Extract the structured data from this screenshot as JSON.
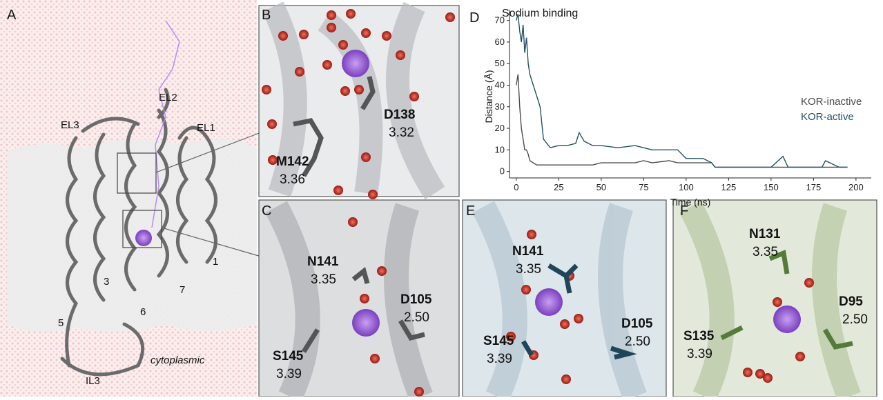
{
  "panel_a": {
    "label": "A",
    "labels": [
      "EL2",
      "EL3",
      "EL1",
      "1",
      "3",
      "7",
      "6",
      "5",
      "IL3",
      "cytoplasmic"
    ]
  },
  "panel_b": {
    "label": "B",
    "residues": [
      {
        "name": "D138",
        "number": "3.32"
      },
      {
        "name": "M142",
        "number": "3.36"
      }
    ]
  },
  "panel_c": {
    "label": "C",
    "residues": [
      {
        "name": "N141",
        "number": "3.35"
      },
      {
        "name": "D105",
        "number": "2.50"
      },
      {
        "name": "S145",
        "number": "3.39"
      }
    ]
  },
  "panel_e": {
    "label": "E",
    "residues": [
      {
        "name": "N141",
        "number": "3.35"
      },
      {
        "name": "D105",
        "number": "2.50"
      },
      {
        "name": "S145",
        "number": "3.39"
      }
    ]
  },
  "panel_f": {
    "label": "F",
    "residues": [
      {
        "name": "N131",
        "number": "3.35"
      },
      {
        "name": "D95",
        "number": "2.50"
      },
      {
        "name": "S135",
        "number": "3.39"
      }
    ]
  },
  "chart_data": {
    "type": "line",
    "label": "D",
    "title": "Sodium binding",
    "x_label": "Time (ns)",
    "y_label": "Distance (Å)",
    "x": [
      0,
      1,
      2,
      3,
      4,
      5,
      6,
      7,
      8,
      10,
      12,
      14,
      16,
      18,
      20,
      25,
      30,
      35,
      37,
      40,
      45,
      50,
      60,
      70,
      75,
      80,
      90,
      95,
      100,
      110,
      115,
      117,
      125,
      150,
      157,
      160,
      170,
      180,
      182,
      190,
      195
    ],
    "series": [
      {
        "name": "KOR-inactive",
        "color": "#4a4a4a",
        "values": [
          40,
          45,
          30,
          20,
          15,
          10,
          10,
          8,
          5,
          4,
          3,
          3,
          3,
          3,
          3,
          3,
          3,
          3,
          3,
          3,
          3,
          4,
          4,
          4,
          5,
          4,
          5,
          4,
          4,
          4,
          4,
          2,
          2,
          2,
          2,
          2,
          2,
          2,
          2,
          2,
          2
        ]
      },
      {
        "name": "KOR-active",
        "color": "#1f5064",
        "values": [
          70,
          73,
          65,
          60,
          68,
          55,
          62,
          50,
          45,
          40,
          35,
          30,
          15,
          13,
          11,
          12,
          12,
          13,
          18,
          14,
          12,
          12,
          11,
          12,
          11,
          10,
          10,
          10,
          6,
          6,
          4,
          2,
          2,
          2,
          7,
          2,
          2,
          2,
          5,
          2,
          2
        ]
      }
    ],
    "xlim": [
      -4,
      209
    ],
    "ylim": [
      -3,
      75
    ],
    "xticks": [
      0,
      25,
      50,
      75,
      100,
      125,
      150,
      175,
      200
    ],
    "yticks": [
      0,
      10,
      20,
      30,
      40,
      50,
      60,
      70
    ],
    "legend": "right"
  }
}
